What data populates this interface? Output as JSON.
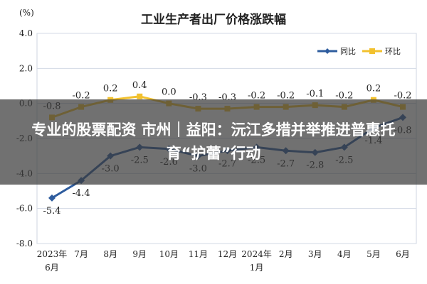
{
  "overlay": {
    "headline": "专业的股票配资 市州｜益阳：沅江多措并举推进普惠托育“护蕾”行动"
  },
  "chart_data": {
    "type": "line",
    "title": "工业生产者出厂价格涨跌幅",
    "unit_label": "(%)",
    "categories": [
      [
        "2023年",
        "6月"
      ],
      [
        "7月"
      ],
      [
        "8月"
      ],
      [
        "9月"
      ],
      [
        "10月"
      ],
      [
        "11月"
      ],
      [
        "12月"
      ],
      [
        "2024年",
        "1月"
      ],
      [
        "2月"
      ],
      [
        "3月"
      ],
      [
        "4月"
      ],
      [
        "5月"
      ],
      [
        "6月"
      ]
    ],
    "ylim": [
      -8.0,
      4.0
    ],
    "yticks": [
      4.0,
      2.0,
      0.0,
      -2.0,
      -4.0,
      -6.0,
      -8.0
    ],
    "ytick_labels": [
      "4.0",
      "2.0",
      "0.0",
      "-2.0",
      "-4.0",
      "-6.0",
      "-8.0"
    ],
    "grid": true,
    "legend_position": "top-right",
    "series": [
      {
        "name": "同比",
        "color": "#2e5c9e",
        "marker": "diamond",
        "values": [
          -5.4,
          -4.4,
          -3.0,
          -2.5,
          -2.6,
          -3.0,
          -2.7,
          -2.5,
          -2.7,
          -2.8,
          -2.5,
          -1.4,
          -0.8
        ],
        "labels": [
          "-5.4",
          "-4.4",
          "-3.0",
          "-2.5",
          "-2.6",
          "-3.0",
          "-2.7",
          "-2.5",
          "-2.7",
          "-2.8",
          "-2.5",
          "-1.4",
          "-0.8"
        ],
        "label_side": "below"
      },
      {
        "name": "环比",
        "color": "#f2c12e",
        "marker": "square",
        "values": [
          -0.8,
          -0.2,
          0.2,
          0.4,
          0.0,
          -0.3,
          -0.3,
          -0.2,
          -0.2,
          -0.1,
          -0.2,
          0.2,
          -0.2
        ],
        "labels": [
          "-0.8",
          "-0.2",
          "0.2",
          "0.4",
          "0.0",
          "-0.3",
          "-0.3",
          "-0.2",
          "-0.2",
          "-0.1",
          "-0.2",
          "0.2",
          "-0.2"
        ],
        "label_side": "above"
      }
    ]
  }
}
